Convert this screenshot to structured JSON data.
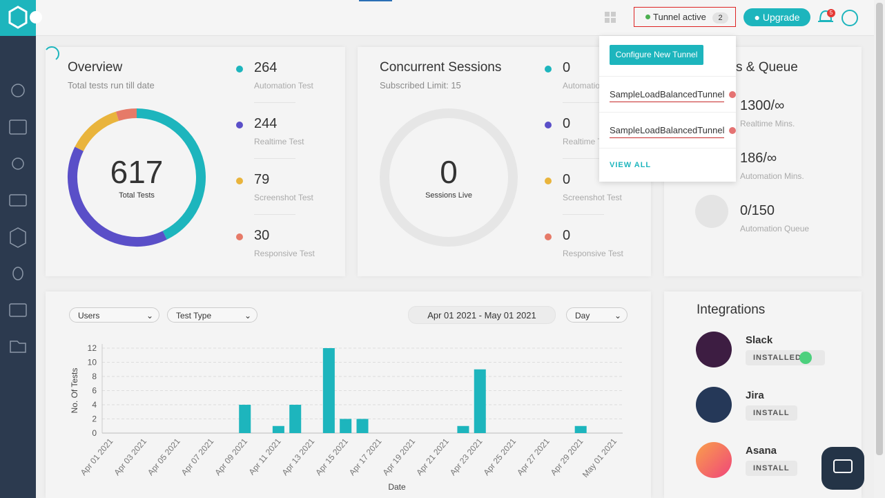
{
  "header": {
    "tunnel_status": "Tunnel active",
    "tunnel_count": 2,
    "upgrade": "Upgrade",
    "notification_count": 5
  },
  "tunnel_menu": {
    "configure": "Configure New Tunnel",
    "tunnels": [
      "SampleLoadBalancedTunnel",
      "SampleLoadBalancedTunnel"
    ],
    "view_all": "VIEW ALL"
  },
  "overview": {
    "title": "Overview",
    "subtitle": "Total tests run till date",
    "total": 617,
    "total_label": "Total Tests",
    "items": [
      {
        "value": 264,
        "label": "Automation Test",
        "color": "#1db5bd"
      },
      {
        "value": 244,
        "label": "Realtime Test",
        "color": "#5a4fc8"
      },
      {
        "value": 79,
        "label": "Screenshot Test",
        "color": "#e9b43c"
      },
      {
        "value": 30,
        "label": "Responsive Test",
        "color": "#e67a68"
      }
    ]
  },
  "sessions": {
    "title": "Concurrent Sessions",
    "subtitle": "Subscribed Limit: 15",
    "total": 0,
    "total_label": "Sessions Live",
    "items": [
      {
        "value": 0,
        "label": "Automation Test",
        "color": "#1db5bd"
      },
      {
        "value": 0,
        "label": "Realtime Test",
        "color": "#5a4fc8"
      },
      {
        "value": 0,
        "label": "Screenshot Test",
        "color": "#e9b43c"
      },
      {
        "value": 0,
        "label": "Responsive Test",
        "color": "#e67a68"
      }
    ]
  },
  "queue": {
    "title": "Minutes & Queue",
    "items": [
      {
        "value": "1300/∞",
        "label": "Realtime Mins."
      },
      {
        "value": "186/∞",
        "label": "Automation Mins."
      },
      {
        "value": "0/150",
        "label": "Automation Queue"
      }
    ]
  },
  "filters": {
    "users": "Users",
    "test_type": "Test Type",
    "date_range": "Apr 01 2021 - May 01 2021",
    "granularity": "Day"
  },
  "tests_chart": {
    "type": "bar",
    "x_label": "Date",
    "y_label": "No. Of Tests",
    "categories": [
      "Apr 01 2021",
      null,
      "Apr 03 2021",
      null,
      "Apr 05 2021",
      null,
      "Apr 07 2021",
      null,
      "Apr 09 2021",
      null,
      "Apr 11 2021",
      null,
      "Apr 13 2021",
      null,
      "Apr 15 2021",
      null,
      "Apr 17 2021",
      null,
      "Apr 19 2021",
      null,
      "Apr 21 2021",
      null,
      "Apr 23 2021",
      null,
      "Apr 25 2021",
      null,
      "Apr 27 2021",
      null,
      "Apr 29 2021",
      null,
      "May 01 2021"
    ],
    "values": [
      0,
      0,
      0,
      0,
      0,
      0,
      0,
      0,
      4,
      0,
      1,
      4,
      0,
      12,
      2,
      2,
      0,
      0,
      0,
      0,
      0,
      1,
      9,
      0,
      0,
      0,
      0,
      0,
      1,
      0,
      0
    ],
    "color": "#1db5bd",
    "ylim": [
      0,
      12
    ],
    "yticks": [
      0,
      2,
      4,
      6,
      8,
      10,
      12
    ],
    "grid": true
  },
  "integrations": {
    "title": "Integrations",
    "items": [
      {
        "name": "Slack",
        "status": "INSTALLED"
      },
      {
        "name": "Jira",
        "status": "INSTALL"
      },
      {
        "name": "Asana",
        "status": "INSTALL"
      }
    ]
  }
}
